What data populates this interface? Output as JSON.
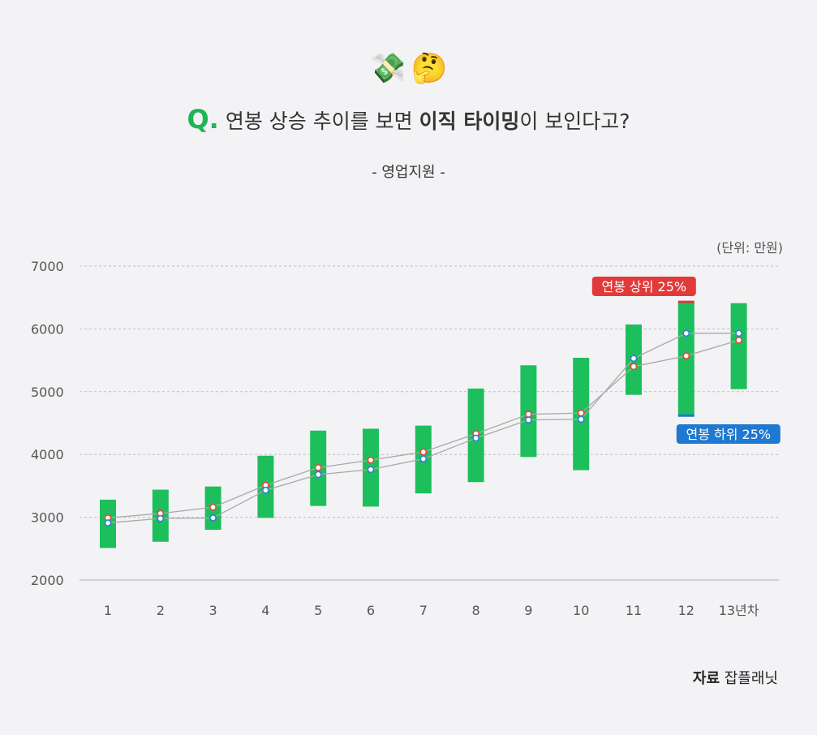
{
  "header": {
    "emojis": [
      "💸",
      "🤔"
    ],
    "question_mark": "Q.",
    "title_part1": "연봉 상승 추이를 보면",
    "title_bold": "이직 타이밍",
    "title_part2": "이 보인다고?",
    "subtitle": "- 영업지원 -",
    "unit": "(단위: 만원)"
  },
  "source": {
    "label": "자료",
    "name": "잡플래닛"
  },
  "colors": {
    "bar": "#1dbf5c",
    "upper_label_bg": "#e23a3a",
    "lower_label_bg": "#1f78d1",
    "line": "#a9a9a9"
  },
  "chart_data": {
    "type": "range-bar-with-lines",
    "categories": [
      "1",
      "2",
      "3",
      "4",
      "5",
      "6",
      "7",
      "8",
      "9",
      "10",
      "11",
      "12",
      "13년차"
    ],
    "ylim": [
      2000,
      7000
    ],
    "yticks": [
      2000,
      3000,
      4000,
      5000,
      6000,
      7000
    ],
    "annotations": {
      "upper": "연봉 상위 25%",
      "lower": "연봉 하위 25%"
    },
    "range_low": [
      2510,
      2610,
      2800,
      2990,
      3180,
      3170,
      3380,
      3560,
      3960,
      3750,
      4950,
      4620,
      5040
    ],
    "range_high": [
      3280,
      3440,
      3490,
      3980,
      4380,
      4410,
      4460,
      5050,
      5420,
      5540,
      6070,
      6430,
      6410
    ],
    "series": [
      {
        "name": "red-marker",
        "values": [
          2990,
          3060,
          3160,
          3510,
          3790,
          3910,
          4040,
          4330,
          4640,
          4660,
          5400,
          5570,
          5820
        ]
      },
      {
        "name": "blue-marker",
        "values": [
          2910,
          2980,
          2990,
          3430,
          3680,
          3760,
          3930,
          4260,
          4550,
          4560,
          5530,
          5930,
          5930
        ]
      }
    ]
  }
}
